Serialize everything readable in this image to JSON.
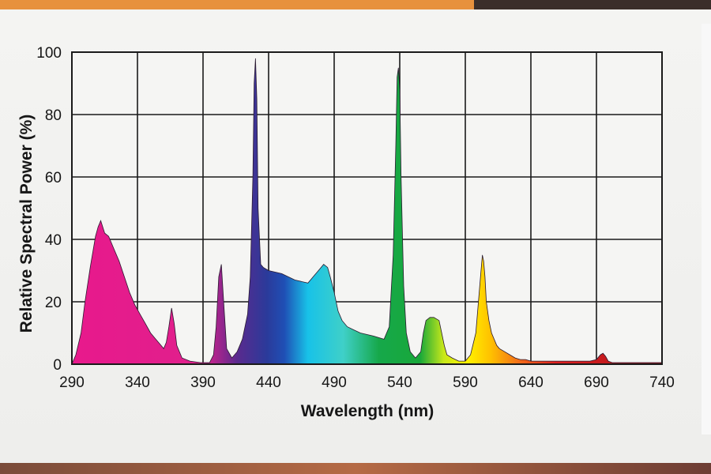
{
  "chart_data": {
    "type": "area",
    "xlabel": "Wavelength (nm)",
    "ylabel": "Relative Spectral Power (%)",
    "xlim": [
      290,
      740
    ],
    "ylim": [
      0,
      100
    ],
    "x_ticks": [
      "290",
      "340",
      "390",
      "440",
      "490",
      "540",
      "590",
      "640",
      "690",
      "740"
    ],
    "y_ticks": [
      "0",
      "20",
      "40",
      "60",
      "80",
      "100"
    ],
    "grid": true,
    "fill": "spectral color gradient (magenta UV to red)",
    "x": [
      290,
      293,
      297,
      300,
      304,
      308,
      310,
      312,
      315,
      318,
      322,
      326,
      330,
      334,
      338,
      342,
      346,
      350,
      354,
      358,
      360,
      362,
      364,
      366,
      368,
      370,
      374,
      380,
      388,
      395,
      398,
      400,
      402,
      404,
      406,
      408,
      412,
      416,
      420,
      424,
      426,
      428,
      429,
      430,
      431,
      432,
      434,
      436,
      440,
      450,
      460,
      470,
      474,
      478,
      482,
      485,
      487,
      490,
      493,
      496,
      500,
      505,
      510,
      520,
      528,
      532,
      535,
      537,
      538,
      539,
      540,
      541,
      543,
      545,
      548,
      552,
      556,
      558,
      560,
      563,
      566,
      570,
      572,
      574,
      576,
      580,
      585,
      590,
      594,
      598,
      600,
      602,
      603,
      604,
      605,
      606,
      608,
      610,
      612,
      614,
      616,
      620,
      624,
      628,
      632,
      636,
      640,
      650,
      660,
      670,
      680,
      685,
      690,
      693,
      695,
      697,
      699,
      702,
      705,
      715,
      725,
      740
    ],
    "y": [
      0,
      3,
      10,
      20,
      31,
      41,
      44,
      46,
      42,
      41,
      37,
      33,
      28,
      23,
      19,
      16,
      13,
      10,
      8,
      6,
      5,
      7,
      12,
      18,
      13,
      6,
      2,
      1,
      0.5,
      0.5,
      3,
      12,
      28,
      32,
      18,
      5,
      2,
      4,
      8,
      16,
      28,
      60,
      90,
      98,
      85,
      50,
      32,
      31,
      30,
      29,
      27,
      26,
      28,
      30,
      32,
      31,
      28,
      23,
      17,
      14,
      12,
      11,
      10,
      9,
      8,
      12,
      35,
      70,
      92,
      95,
      88,
      60,
      25,
      10,
      4,
      2,
      4,
      10,
      14,
      15,
      15,
      14,
      10,
      6,
      3,
      2,
      1,
      1,
      3,
      10,
      20,
      30,
      35,
      33,
      28,
      20,
      14,
      10,
      8,
      6,
      5,
      4,
      3,
      2,
      1.5,
      1.5,
      1,
      1,
      1,
      1,
      1,
      1,
      1.5,
      3,
      3.5,
      2.5,
      1,
      0.5,
      0.5,
      0.5,
      0.5,
      0.5
    ]
  }
}
